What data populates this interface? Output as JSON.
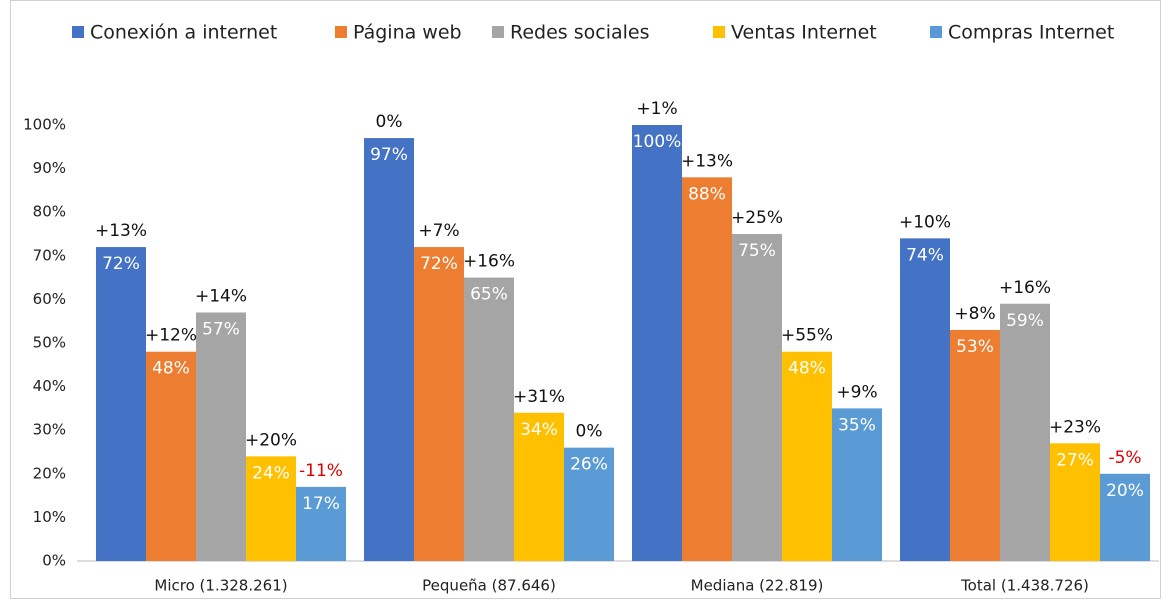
{
  "chart_data": {
    "type": "bar",
    "categories": [
      "Micro (1.328.261)",
      "Pequeña (87.646)",
      "Mediana (22.819)",
      "Total (1.438.726)"
    ],
    "series": [
      {
        "name": "Conexión a internet",
        "color": "#4472c4",
        "values": [
          72,
          97,
          100,
          74
        ],
        "value_labels": [
          "72%",
          "97%",
          "100%",
          "74%"
        ],
        "annotations": [
          "+13%",
          "0%",
          "+1%",
          "+10%"
        ]
      },
      {
        "name": "Página web",
        "color": "#ed7d31",
        "values": [
          48,
          72,
          88,
          53
        ],
        "value_labels": [
          "48%",
          "72%",
          "88%",
          "53%"
        ],
        "annotations": [
          "+12%",
          "+7%",
          "+13%",
          "+8%"
        ]
      },
      {
        "name": "Redes sociales",
        "color": "#a5a5a5",
        "values": [
          57,
          65,
          75,
          59
        ],
        "value_labels": [
          "57%",
          "65%",
          "75%",
          "59%"
        ],
        "annotations": [
          "+14%",
          "+16%",
          "+25%",
          "+16%"
        ]
      },
      {
        "name": "Ventas Internet",
        "color": "#ffc000",
        "values": [
          24,
          34,
          48,
          27
        ],
        "value_labels": [
          "24%",
          "34%",
          "48%",
          "27%"
        ],
        "annotations": [
          "+20%",
          "+31%",
          "+55%",
          "+23%"
        ]
      },
      {
        "name": "Compras Internet",
        "color": "#5b9bd5",
        "values": [
          17,
          26,
          35,
          20
        ],
        "value_labels": [
          "17%",
          "26%",
          "35%",
          "20%"
        ],
        "annotations": [
          "-11%",
          "0%",
          "+9%",
          "-5%"
        ]
      }
    ],
    "ylim": [
      0,
      100
    ],
    "yticks": [
      {
        "value": 0,
        "label": "0%"
      },
      {
        "value": 10,
        "label": "10%"
      },
      {
        "value": 20,
        "label": "20%"
      },
      {
        "value": 30,
        "label": "30%"
      },
      {
        "value": 40,
        "label": "40%"
      },
      {
        "value": 50,
        "label": "50%"
      },
      {
        "value": 60,
        "label": "60%"
      },
      {
        "value": 70,
        "label": "70%"
      },
      {
        "value": 80,
        "label": "80%"
      },
      {
        "value": 90,
        "label": "90%"
      },
      {
        "value": 100,
        "label": "100%"
      }
    ],
    "grid": false,
    "legend": "top"
  }
}
